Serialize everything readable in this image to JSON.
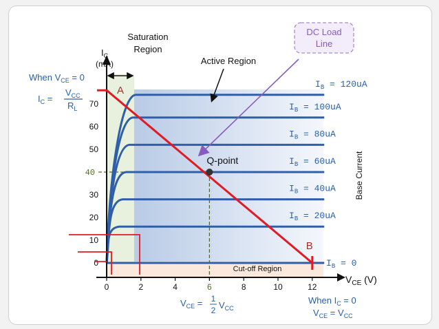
{
  "chart_data": {
    "type": "line",
    "xlabel_main": "V",
    "xlabel_sub": "CE",
    "xlabel_unit": " (V)",
    "ylabel_main": "I",
    "ylabel_sub": "C",
    "ylabel_unit": "(mA)",
    "x_ticks": [
      "0",
      "2",
      "4",
      "6",
      "8",
      "10",
      "12"
    ],
    "x_tick_values": [
      0,
      2,
      4,
      6,
      8,
      10,
      12
    ],
    "y_ticks": [
      "0",
      "10",
      "20",
      "30",
      "40",
      "50",
      "60",
      "70"
    ],
    "y_tick_values": [
      0,
      10,
      20,
      30,
      40,
      50,
      60,
      70
    ],
    "xlim": [
      0,
      13
    ],
    "ylim": [
      0,
      80
    ],
    "highlight_y_tick": "40",
    "highlight_x_tick": "6",
    "series_label_prefix": "I",
    "series_label_sub": "B",
    "series": [
      {
        "name": "= 120uA",
        "ic": 74
      },
      {
        "name": "= 100uA",
        "ic": 64
      },
      {
        "name": "= 80uA",
        "ic": 52
      },
      {
        "name": "= 60uA",
        "ic": 40
      },
      {
        "name": "= 40uA",
        "ic": 28
      },
      {
        "name": "= 20uA",
        "ic": 16
      },
      {
        "name": "= 0",
        "ic": 0
      }
    ],
    "load_line": {
      "x": [
        0,
        12
      ],
      "y": [
        76,
        0
      ],
      "color": "#e01b24"
    },
    "q_point": {
      "label": "Q-point",
      "x": 6,
      "y": 40
    },
    "point_a_label": "A",
    "point_b_label": "B",
    "colors": {
      "curves": "#2e5fa8",
      "load_line": "#e01b24",
      "guide": "#556b2f",
      "saturation_fill": "#e7f1de",
      "cutoff_fill": "#fbe9dd"
    }
  },
  "annotations": {
    "saturation_line1": "Saturation",
    "saturation_line2": "Region",
    "active_region": "Active Region",
    "dc_load_line1": "DC Load",
    "dc_load_line2": "Line",
    "base_current": "Base Current",
    "cutoff_region": "Cut-off Region",
    "when_vce0": "When V",
    "when_vce0_sub": "CE",
    "when_vce0_tail": " = 0",
    "ic_eq": "I",
    "ic_eq_sub": "C",
    "ic_eq_tail": " =",
    "frac_num": "V",
    "frac_num_sub": "CC",
    "frac_den": "R",
    "frac_den_sub": "L",
    "vce_half": "V",
    "vce_half_sub": "CE",
    "vce_half_eq": " =",
    "half_num": "1",
    "half_den": "2",
    "vce_half_tail": "V",
    "vce_half_tail_sub": "CC",
    "when_ic0": "When I",
    "when_ic0_sub": "C",
    "when_ic0_tail": " = 0",
    "vce_vcc": "V",
    "vce_vcc_sub": "CE",
    "vce_vcc_mid": " = V",
    "vce_vcc_sub2": "CC"
  }
}
